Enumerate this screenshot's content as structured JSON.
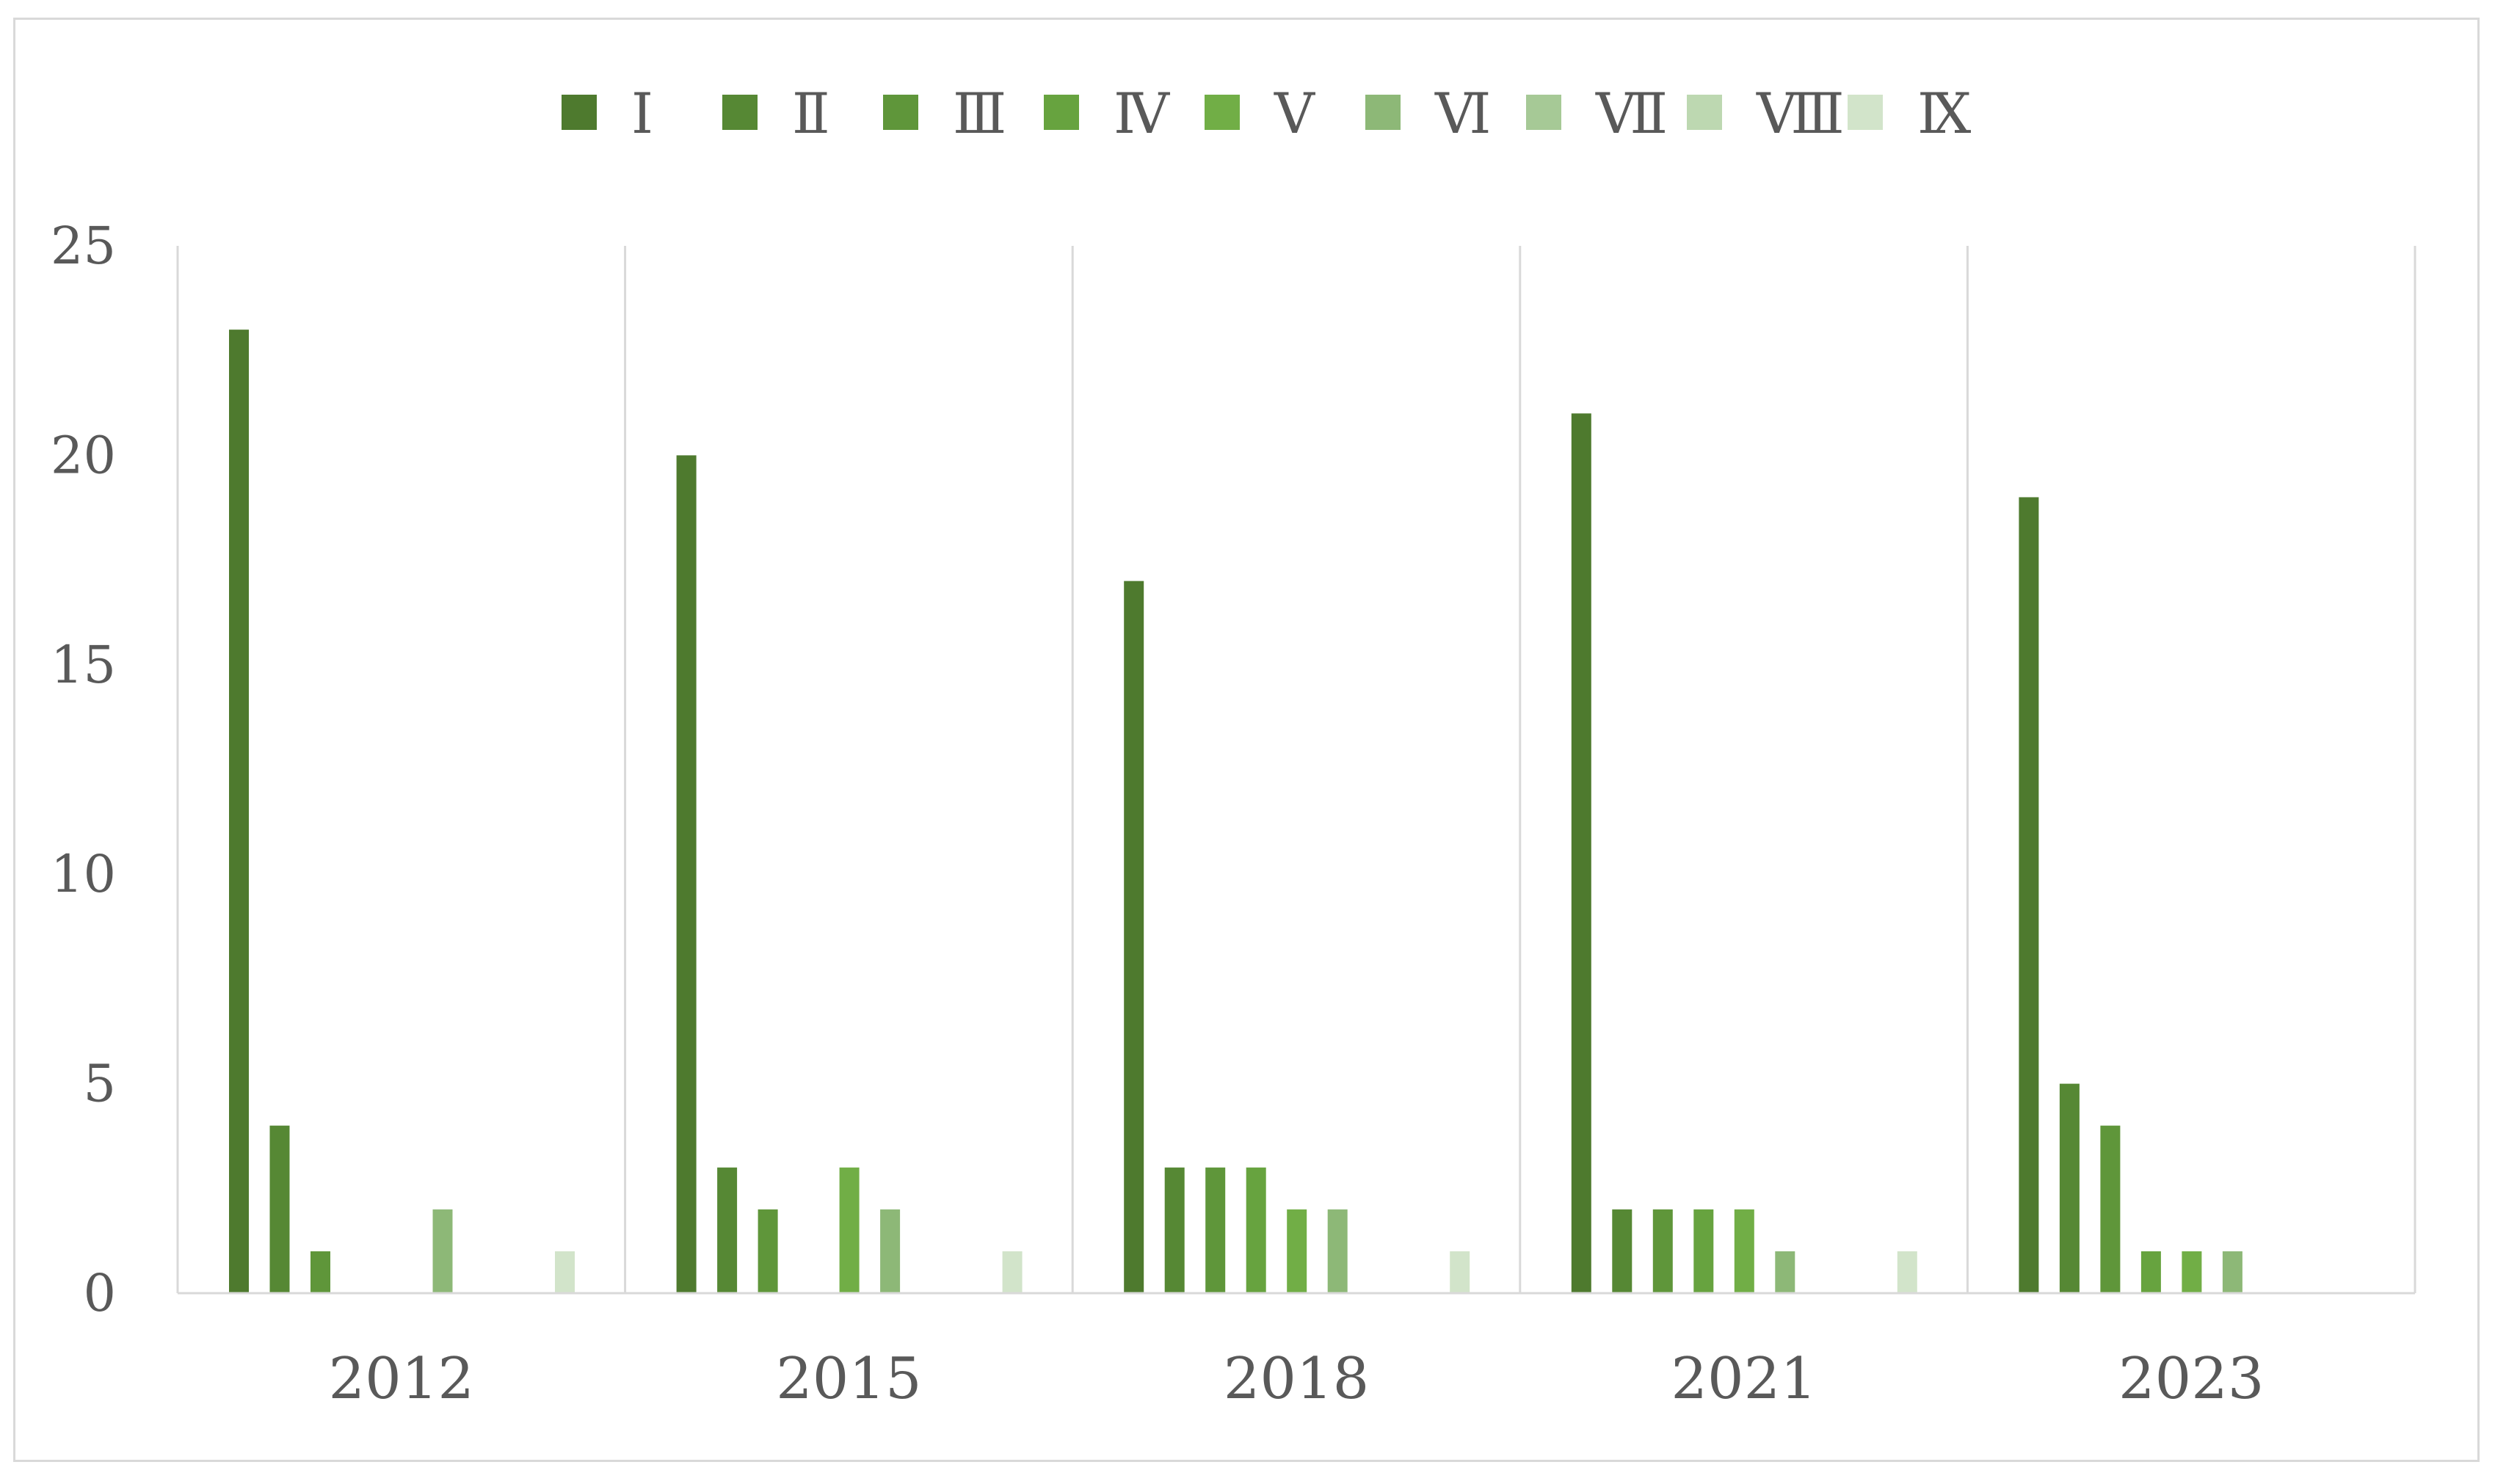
{
  "chart_data": {
    "type": "bar",
    "title": "",
    "xlabel": "",
    "ylabel": "",
    "categories": [
      "2012",
      "2015",
      "2018",
      "2021",
      "2023"
    ],
    "ylim": [
      0,
      25
    ],
    "yticks": [
      0,
      5,
      10,
      15,
      20,
      25
    ],
    "grid": "vertical separators between categories",
    "legend_position": "top",
    "series": [
      {
        "name": "Ⅰ",
        "color": "#4e7a2e",
        "values": [
          23,
          20,
          17,
          21,
          19
        ]
      },
      {
        "name": "Ⅱ",
        "color": "#568834",
        "values": [
          4,
          3,
          3,
          2,
          5
        ]
      },
      {
        "name": "Ⅲ",
        "color": "#5f963a",
        "values": [
          1,
          2,
          3,
          2,
          4
        ]
      },
      {
        "name": "Ⅳ",
        "color": "#67a33f",
        "values": [
          0,
          0,
          3,
          2,
          1
        ]
      },
      {
        "name": "Ⅴ",
        "color": "#71ae46",
        "values": [
          0,
          3,
          2,
          2,
          1
        ]
      },
      {
        "name": "Ⅵ",
        "color": "#8db877",
        "values": [
          2,
          2,
          2,
          1,
          1
        ]
      },
      {
        "name": "Ⅶ",
        "color": "#a6c996",
        "values": [
          0,
          0,
          0,
          0,
          0
        ]
      },
      {
        "name": "Ⅷ",
        "color": "#bdd8b1",
        "values": [
          0,
          0,
          0,
          0,
          0
        ]
      },
      {
        "name": "Ⅸ",
        "color": "#d2e4ca",
        "values": [
          1,
          1,
          1,
          1,
          0
        ]
      }
    ]
  }
}
